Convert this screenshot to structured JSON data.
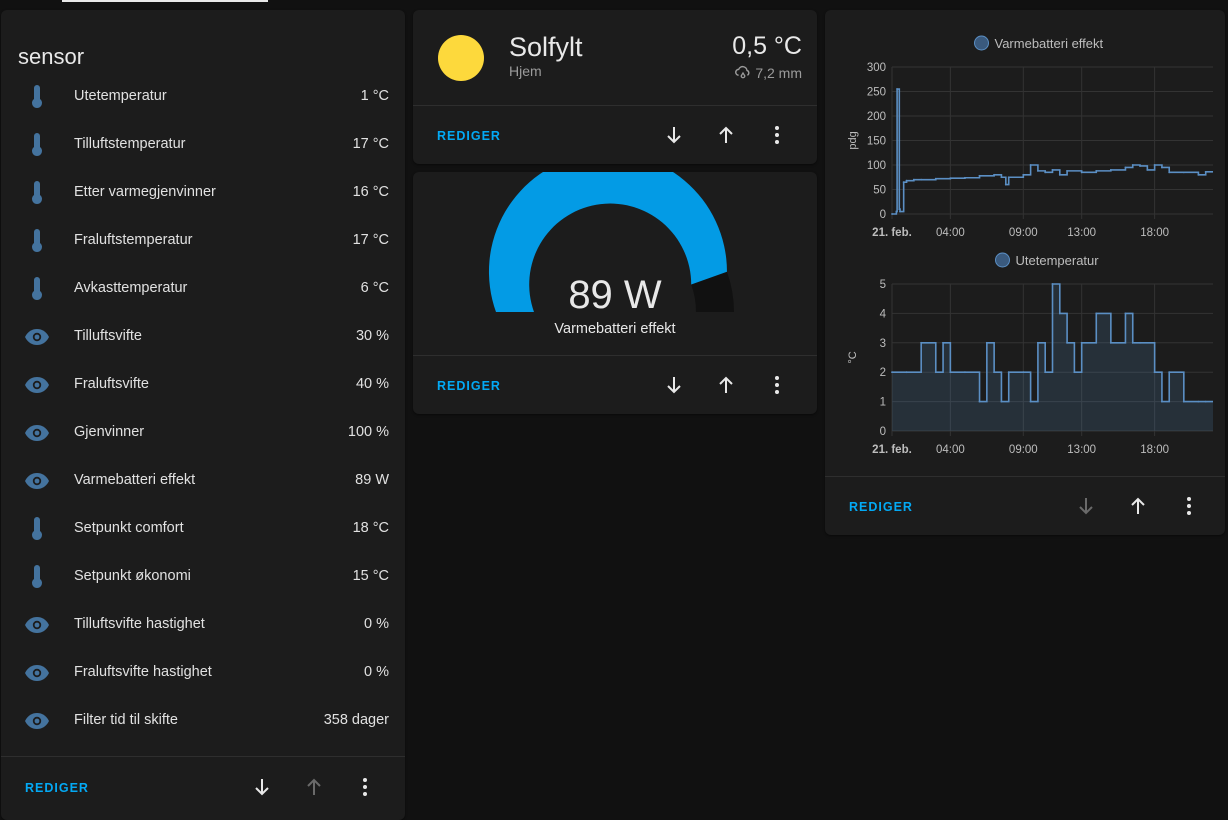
{
  "entities_card": {
    "title": "sensor",
    "rows": [
      {
        "icon": "thermometer-icon",
        "name": "Utetemperatur",
        "value": "1 °C"
      },
      {
        "icon": "thermometer-icon",
        "name": "Tilluftstemperatur",
        "value": "17 °C"
      },
      {
        "icon": "thermometer-icon",
        "name": "Etter varmegjenvinner",
        "value": "16 °C"
      },
      {
        "icon": "thermometer-icon",
        "name": "Fraluftstemperatur",
        "value": "17 °C"
      },
      {
        "icon": "thermometer-icon",
        "name": "Avkasttemperatur",
        "value": "6 °C"
      },
      {
        "icon": "eye-icon",
        "name": "Tilluftsvifte",
        "value": "30 %"
      },
      {
        "icon": "eye-icon",
        "name": "Fraluftsvifte",
        "value": "40 %"
      },
      {
        "icon": "eye-icon",
        "name": "Gjenvinner",
        "value": "100 %"
      },
      {
        "icon": "eye-icon",
        "name": "Varmebatteri effekt",
        "value": "89 W"
      },
      {
        "icon": "thermometer-icon",
        "name": "Setpunkt comfort",
        "value": "18 °C"
      },
      {
        "icon": "thermometer-icon",
        "name": "Setpunkt økonomi",
        "value": "15 °C"
      },
      {
        "icon": "eye-icon",
        "name": "Tilluftsvifte hastighet",
        "value": "0 %"
      },
      {
        "icon": "eye-icon",
        "name": "Fraluftsvifte hastighet",
        "value": "0 %"
      },
      {
        "icon": "eye-icon",
        "name": "Filter tid til skifte",
        "value": "358 dager"
      }
    ],
    "edit_label": "REDIGER"
  },
  "weather_card": {
    "condition": "Solfylt",
    "location": "Hjem",
    "temperature": "0,5 °C",
    "precipitation": "7,2 mm",
    "edit_label": "REDIGER"
  },
  "gauge_card": {
    "value": "89 W",
    "name": "Varmebatteri effekt",
    "fill_fraction": 0.89,
    "edit_label": "REDIGER"
  },
  "history_card": {
    "edit_label": "REDIGER"
  },
  "colors": {
    "accent": "#03a9f4",
    "icon": "#44739e",
    "sun": "#fdd93c",
    "series": "#5b8fc4"
  },
  "chart_data": [
    {
      "type": "line",
      "title": "",
      "legend": [
        "Varmebatteri effekt"
      ],
      "ylabel": "pdg",
      "xlabel": "",
      "xticks": [
        "21. feb.",
        "04:00",
        "09:00",
        "13:00",
        "18:00"
      ],
      "yticks": [
        0,
        50,
        100,
        150,
        200,
        250,
        300
      ],
      "ylim": [
        0,
        300
      ],
      "x_hours": [
        0.0,
        0.3,
        0.35,
        0.5,
        0.55,
        0.8,
        1,
        1.5,
        2,
        3,
        4,
        5,
        6,
        7,
        7.5,
        7.8,
        8,
        9,
        9.5,
        10,
        10.5,
        11,
        11.5,
        12,
        13,
        14,
        15,
        16,
        16.5,
        17,
        17.5,
        18,
        18.5,
        19,
        20,
        21,
        21.5
      ],
      "series": [
        {
          "name": "Varmebatteri effekt",
          "values": [
            0,
            5,
            255,
            10,
            5,
            65,
            68,
            70,
            70,
            72,
            73,
            74,
            78,
            80,
            75,
            60,
            75,
            80,
            100,
            88,
            85,
            90,
            80,
            88,
            85,
            88,
            90,
            95,
            100,
            98,
            90,
            100,
            95,
            85,
            85,
            80,
            86
          ]
        }
      ],
      "grid": true
    },
    {
      "type": "line",
      "title": "",
      "legend": [
        "Utetemperatur"
      ],
      "ylabel": "°C",
      "xlabel": "",
      "xticks": [
        "21. feb.",
        "04:00",
        "09:00",
        "13:00",
        "18:00"
      ],
      "yticks": [
        0,
        1,
        2,
        3,
        4,
        5
      ],
      "ylim": [
        0,
        5
      ],
      "x_hours": [
        0,
        1,
        2,
        3,
        3.5,
        4,
        5,
        6,
        6.5,
        7,
        7.5,
        8,
        9,
        9.5,
        10,
        10.5,
        11,
        11.5,
        12,
        12.5,
        13,
        14,
        15,
        16,
        16.5,
        17,
        18,
        18.5,
        19,
        20,
        21,
        21.5
      ],
      "series": [
        {
          "name": "Utetemperatur",
          "values": [
            2,
            2,
            3,
            2,
            3,
            2,
            2,
            1,
            3,
            2,
            1,
            2,
            2,
            1,
            3,
            2,
            5,
            4,
            3,
            2,
            3,
            4,
            3,
            4,
            3,
            3,
            2,
            1,
            2,
            1,
            1,
            1
          ]
        }
      ],
      "grid": true
    }
  ]
}
